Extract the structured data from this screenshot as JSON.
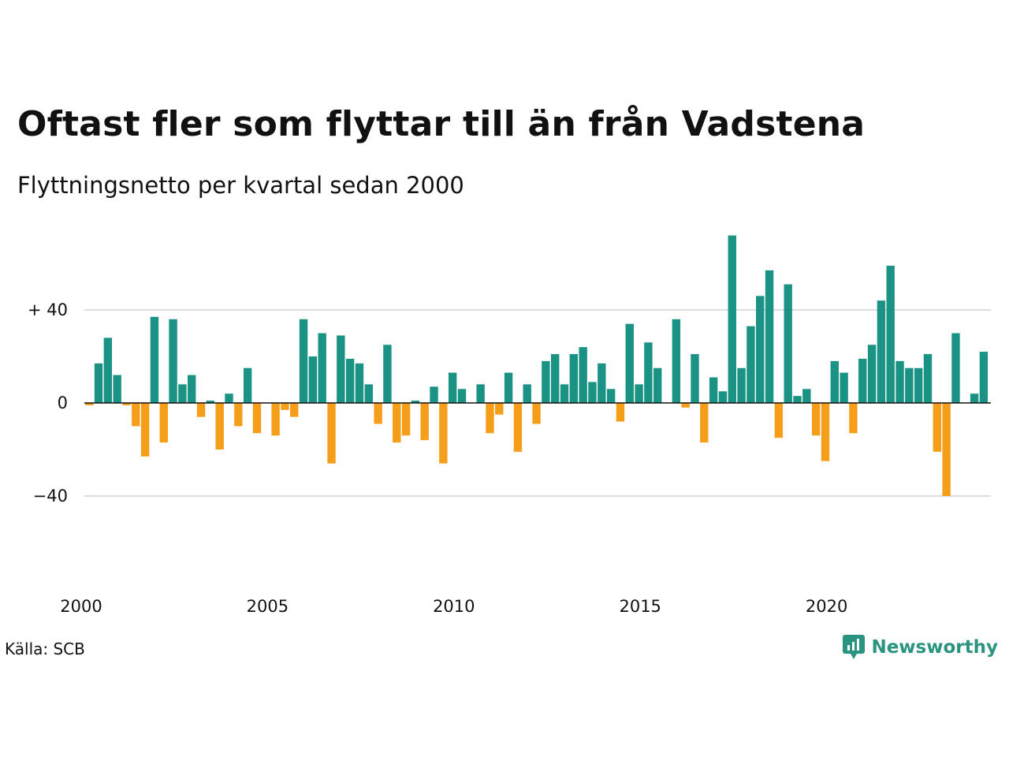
{
  "header": {
    "title": "Oftast fler som flyttar till än från Vadstena",
    "subtitle": "Flyttningsnetto per kvartal sedan 2000"
  },
  "footer": {
    "source": "Källa: SCB",
    "brand": "Newsworthy"
  },
  "colors": {
    "positive": "#1a9384",
    "negative": "#f59e1a",
    "grid": "#dddddd",
    "zero_line": "#111111",
    "brand": "#2a9480"
  },
  "chart_data": {
    "type": "bar",
    "title": "Oftast fler som flyttar till än från Vadstena",
    "subtitle": "Flyttningsnetto per kvartal sedan 2000",
    "xlabel": "",
    "ylabel": "",
    "ylim": [
      -55,
      72
    ],
    "yticks": [
      {
        "value": 40,
        "label": "+ 40"
      },
      {
        "value": 0,
        "label": "0"
      },
      {
        "value": -40,
        "label": "−40"
      }
    ],
    "xticks": [
      {
        "year": 2000,
        "label": "2000"
      },
      {
        "year": 2005,
        "label": "2005"
      },
      {
        "year": 2010,
        "label": "2010"
      },
      {
        "year": 2015,
        "label": "2015"
      },
      {
        "year": 2020,
        "label": "2020"
      }
    ],
    "start_year": 2000,
    "start_quarter": 1,
    "grid": true,
    "legend": "none",
    "values": [
      -1,
      17,
      28,
      12,
      -1,
      -10,
      -23,
      37,
      -17,
      36,
      8,
      12,
      -6,
      1,
      -20,
      4,
      -10,
      15,
      -13,
      0,
      -14,
      -3,
      -6,
      36,
      20,
      30,
      -26,
      29,
      19,
      17,
      8,
      -9,
      25,
      -17,
      -14,
      1,
      -16,
      7,
      -26,
      13,
      6,
      0,
      8,
      -13,
      -5,
      13,
      -21,
      8,
      -9,
      18,
      21,
      8,
      21,
      24,
      9,
      17,
      6,
      -8,
      34,
      8,
      26,
      15,
      0,
      36,
      -2,
      21,
      -17,
      11,
      5,
      72,
      15,
      33,
      46,
      57,
      -15,
      51,
      3,
      6,
      -14,
      -25,
      18,
      13,
      -13,
      19,
      25,
      44,
      59,
      18,
      15,
      15,
      21,
      -21,
      -40,
      30,
      0,
      4,
      22
    ]
  }
}
